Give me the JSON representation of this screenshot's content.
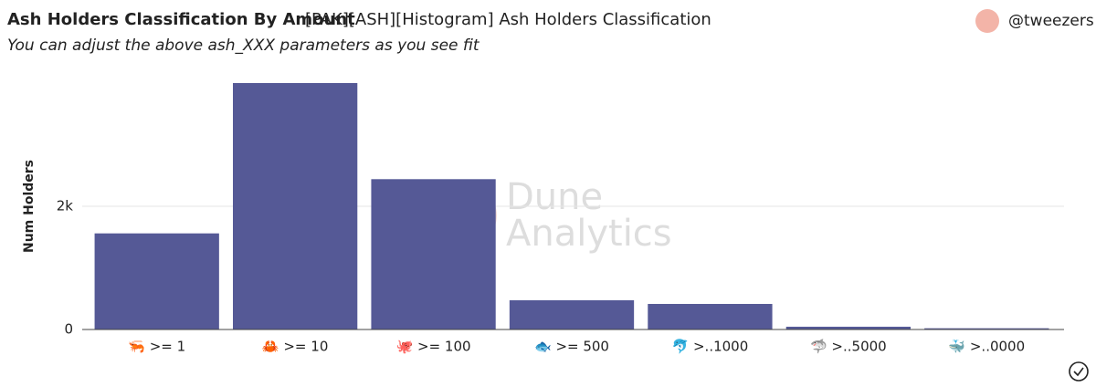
{
  "chart_data": {
    "type": "bar",
    "title": "Ash Holders Classification By Amount",
    "subtitle": "[PAK][ASH][Histogram] Ash Holders Classification",
    "description": "You can adjust the above ash_XXX parameters as you see fit",
    "author": "@tweezers",
    "ylabel": "Num Holders",
    "watermark": [
      "Dune",
      "Analytics"
    ],
    "categories": [
      "🦐 >= 1",
      "🦀 >= 10",
      "🐙 >= 100",
      "🐟 >= 500",
      "🐬 >..1000",
      "🦈 >..5000",
      "🐳 >..0000"
    ],
    "values": [
      1560,
      4000,
      2440,
      475,
      415,
      45,
      20
    ],
    "color": "#555996",
    "ylim": [
      0,
      4000
    ],
    "yticks": [
      0,
      {
        "value": 2000,
        "label": "2k"
      }
    ],
    "grid": true
  }
}
